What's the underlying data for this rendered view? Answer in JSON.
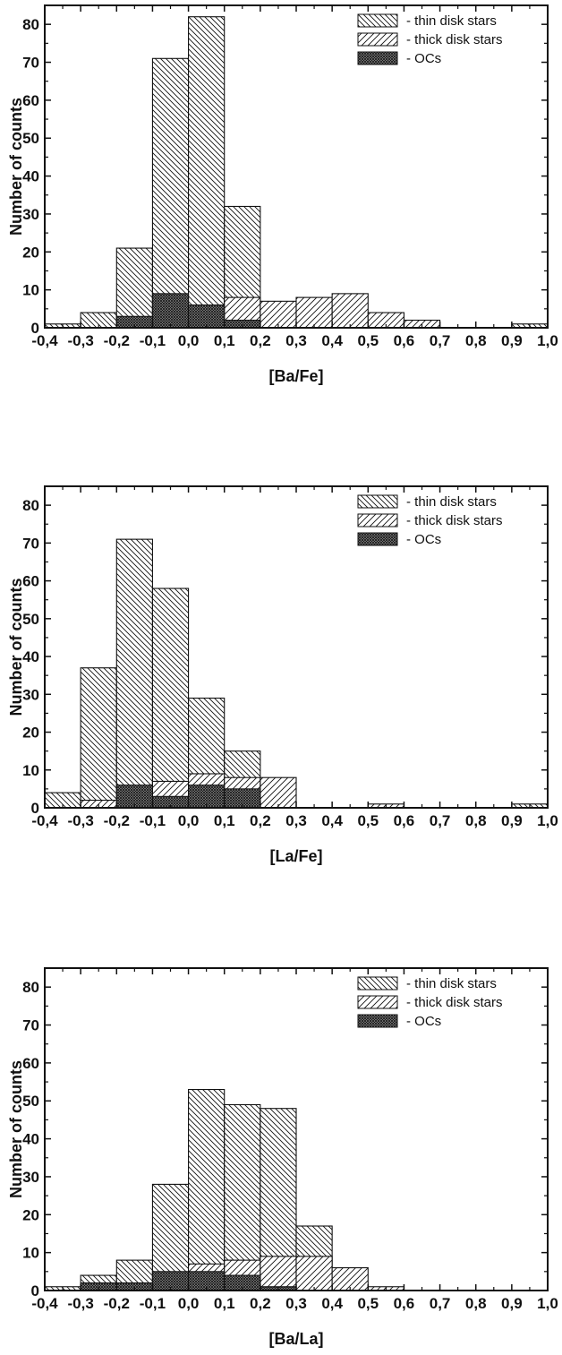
{
  "chart_data": [
    {
      "type": "bar",
      "xlabel": "[Ba/Fe]",
      "ylabel": "Number of counts",
      "xlim": [
        -0.4,
        1.0
      ],
      "ylim": [
        0,
        85
      ],
      "x_ticks": [
        "-0,4",
        "-0,3",
        "-0,2",
        "-0,1",
        "0,0",
        "0,1",
        "0,2",
        "0,3",
        "0,4",
        "0,5",
        "0,6",
        "0,7",
        "0,8",
        "0,9",
        "1,0"
      ],
      "y_ticks": [
        "0",
        "10",
        "20",
        "30",
        "40",
        "50",
        "60",
        "70",
        "80"
      ],
      "bin_edges": [
        -0.4,
        -0.3,
        -0.2,
        -0.1,
        0.0,
        0.1,
        0.2,
        0.3,
        0.4,
        0.5,
        0.6,
        0.7,
        0.8,
        0.9,
        1.0
      ],
      "legend_position": "top-right",
      "series": [
        {
          "name": "- thin disk stars",
          "pattern": "hatch-back",
          "values": [
            1,
            4,
            21,
            71,
            82,
            32,
            2,
            0,
            0,
            0,
            0,
            0,
            0,
            1
          ]
        },
        {
          "name": "- thick disk stars",
          "pattern": "hatch-fwd",
          "values": [
            0,
            0,
            0,
            0,
            0,
            8,
            7,
            8,
            9,
            4,
            2,
            0,
            0,
            0
          ]
        },
        {
          "name": "- OCs",
          "pattern": "crosshatch",
          "values": [
            0,
            0,
            3,
            9,
            6,
            2,
            0,
            0,
            0,
            0,
            0,
            0,
            0,
            0
          ]
        }
      ]
    },
    {
      "type": "bar",
      "xlabel": "[La/Fe]",
      "ylabel": "Number of counts",
      "xlim": [
        -0.4,
        1.0
      ],
      "ylim": [
        0,
        85
      ],
      "x_ticks": [
        "-0,4",
        "-0,3",
        "-0,2",
        "-0,1",
        "0,0",
        "0,1",
        "0,2",
        "0,3",
        "0,4",
        "0,5",
        "0,6",
        "0,7",
        "0,8",
        "0,9",
        "1,0"
      ],
      "y_ticks": [
        "0",
        "10",
        "20",
        "30",
        "40",
        "50",
        "60",
        "70",
        "80"
      ],
      "bin_edges": [
        -0.4,
        -0.3,
        -0.2,
        -0.1,
        0.0,
        0.1,
        0.2,
        0.3,
        0.4,
        0.5,
        0.6,
        0.7,
        0.8,
        0.9,
        1.0
      ],
      "legend_position": "top-right",
      "series": [
        {
          "name": "- thin disk stars",
          "pattern": "hatch-back",
          "values": [
            4,
            37,
            71,
            58,
            29,
            15,
            0,
            0,
            0,
            0,
            0,
            0,
            0,
            1
          ]
        },
        {
          "name": "- thick disk stars",
          "pattern": "hatch-fwd",
          "values": [
            0,
            2,
            0,
            7,
            9,
            8,
            8,
            0,
            0,
            1,
            0,
            0,
            0,
            0
          ]
        },
        {
          "name": "- OCs",
          "pattern": "crosshatch",
          "values": [
            0,
            0,
            6,
            3,
            6,
            5,
            0,
            0,
            0,
            0,
            0,
            0,
            0,
            0
          ]
        }
      ]
    },
    {
      "type": "bar",
      "xlabel": "[Ba/La]",
      "ylabel": "Number of counts",
      "xlim": [
        -0.4,
        1.0
      ],
      "ylim": [
        0,
        85
      ],
      "x_ticks": [
        "-0,4",
        "-0,3",
        "-0,2",
        "-0,1",
        "0,0",
        "0,1",
        "0,2",
        "0,3",
        "0,4",
        "0,5",
        "0,6",
        "0,7",
        "0,8",
        "0,9",
        "1,0"
      ],
      "y_ticks": [
        "0",
        "10",
        "20",
        "30",
        "40",
        "50",
        "60",
        "70",
        "80"
      ],
      "bin_edges": [
        -0.4,
        -0.3,
        -0.2,
        -0.1,
        0.0,
        0.1,
        0.2,
        0.3,
        0.4,
        0.5,
        0.6,
        0.7,
        0.8,
        0.9,
        1.0
      ],
      "legend_position": "top-right",
      "series": [
        {
          "name": "- thin disk stars",
          "pattern": "hatch-back",
          "values": [
            1,
            4,
            8,
            28,
            53,
            49,
            48,
            17,
            0,
            0,
            0,
            0,
            0,
            0
          ]
        },
        {
          "name": "- thick disk stars",
          "pattern": "hatch-fwd",
          "values": [
            0,
            0,
            0,
            0,
            7,
            8,
            9,
            9,
            6,
            1,
            0,
            0,
            0,
            0
          ]
        },
        {
          "name": "- OCs",
          "pattern": "crosshatch",
          "values": [
            0,
            2,
            2,
            5,
            5,
            4,
            1,
            0,
            0,
            0,
            0,
            0,
            0,
            0
          ]
        }
      ]
    }
  ]
}
